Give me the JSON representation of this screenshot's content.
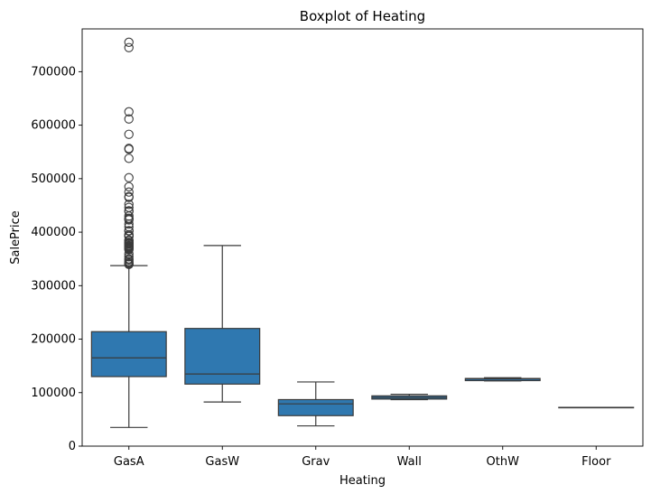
{
  "chart_data": {
    "type": "boxplot",
    "title": "Boxplot of Heating",
    "xlabel": "Heating",
    "ylabel": "SalePrice",
    "ylim": [
      0,
      780000
    ],
    "yticks": [
      0,
      100000,
      200000,
      300000,
      400000,
      500000,
      600000,
      700000
    ],
    "ytick_labels": [
      "0",
      "100000",
      "200000",
      "300000",
      "400000",
      "500000",
      "600000",
      "700000"
    ],
    "grid": false,
    "box_color": "#2f78b0",
    "line_color": "#3a3a3a",
    "categories": [
      "GasA",
      "GasW",
      "Grav",
      "Wall",
      "OthW",
      "Floor"
    ],
    "boxes": [
      {
        "category": "GasA",
        "whisker_low": 34900,
        "q1": 130000,
        "median": 165000,
        "q3": 214000,
        "whisker_high": 337500,
        "outliers": [
          755000,
          745000,
          625000,
          611657,
          582933,
          556581,
          555000,
          538000,
          501837,
          485000,
          475000,
          466500,
          465000,
          451950,
          446261,
          440000,
          438780,
          430000,
          426000,
          424870,
          423000,
          415298,
          410000,
          402861,
          402000,
          395192,
          394617,
          392500,
          392000,
          385000,
          384500,
          383970,
          381000,
          380000,
          378500,
          377500,
          377426,
          375000,
          374000,
          372500,
          372402,
          370878,
          369900,
          368500,
          367294,
          359100,
          354000,
          350000,
          348000,
          345000,
          342643,
          341000,
          340000,
          339750
        ]
      },
      {
        "category": "GasW",
        "whisker_low": 82500,
        "q1": 116000,
        "median": 134900,
        "q3": 220000,
        "whisker_high": 375000,
        "outliers": []
      },
      {
        "category": "Grav",
        "whisker_low": 37900,
        "q1": 57000,
        "median": 79000,
        "q3": 87000,
        "whisker_high": 120000,
        "outliers": []
      },
      {
        "category": "Wall",
        "whisker_low": 87000,
        "q1": 88000,
        "median": 91000,
        "q3": 94000,
        "whisker_high": 97000,
        "outliers": []
      },
      {
        "category": "OthW",
        "whisker_low": 122000,
        "q1": 122500,
        "median": 125750,
        "q3": 126500,
        "whisker_high": 128000,
        "outliers": []
      },
      {
        "category": "Floor",
        "whisker_low": 72500,
        "q1": 72500,
        "median": 72500,
        "q3": 72500,
        "whisker_high": 72500,
        "outliers": []
      }
    ]
  }
}
